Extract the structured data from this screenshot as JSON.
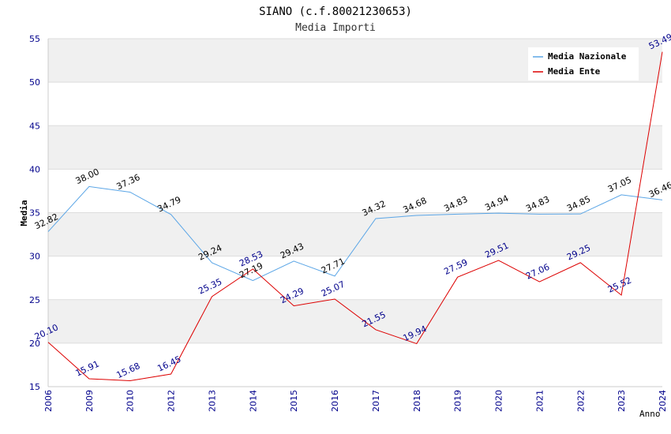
{
  "chart_data": {
    "type": "line",
    "title": "SIANO (c.f.80021230653)",
    "subtitle": "Media Importi",
    "xlabel": "Anno",
    "ylabel": "Media",
    "ylim": [
      15,
      55
    ],
    "yticks": [
      15,
      20,
      25,
      30,
      35,
      40,
      45,
      50,
      55
    ],
    "categories": [
      "2006",
      "2009",
      "2010",
      "2012",
      "2013",
      "2014",
      "2015",
      "2016",
      "2017",
      "2018",
      "2019",
      "2020",
      "2021",
      "2022",
      "2023",
      "2024"
    ],
    "series": [
      {
        "name": "Media Nazionale",
        "color": "#5aa5e6",
        "label_color": "#000000",
        "values": [
          32.82,
          38.0,
          37.36,
          34.79,
          29.24,
          27.19,
          29.43,
          27.71,
          34.32,
          34.68,
          34.83,
          34.94,
          34.83,
          34.85,
          37.05,
          36.46
        ],
        "labels": [
          "32.82",
          "38.00",
          "37.36",
          "34.79",
          "29.24",
          "27.19",
          "29.43",
          "27.71",
          "34.32",
          "34.68",
          "34.83",
          "34.94",
          "34.83",
          "34.85",
          "37.05",
          "36.46"
        ]
      },
      {
        "name": "Media Ente",
        "color": "#dd0000",
        "label_color": "#00008b",
        "values": [
          20.1,
          15.91,
          15.68,
          16.45,
          25.35,
          28.53,
          24.29,
          25.07,
          21.55,
          19.94,
          27.59,
          29.51,
          27.06,
          29.25,
          25.52,
          53.49
        ],
        "labels": [
          "20.10",
          "15.91",
          "15.68",
          "16.45",
          "25.35",
          "28.53",
          "24.29",
          "25.07",
          "21.55",
          "19.94",
          "27.59",
          "29.51",
          "27.06",
          "29.25",
          "25.52",
          "53.49"
        ]
      }
    ],
    "grid": true,
    "legend_position": "top-right",
    "colors": {
      "axis_tick_labels": "#00008b",
      "band_fill": "#f0f0f0",
      "grid_line": "#dddddd"
    }
  }
}
